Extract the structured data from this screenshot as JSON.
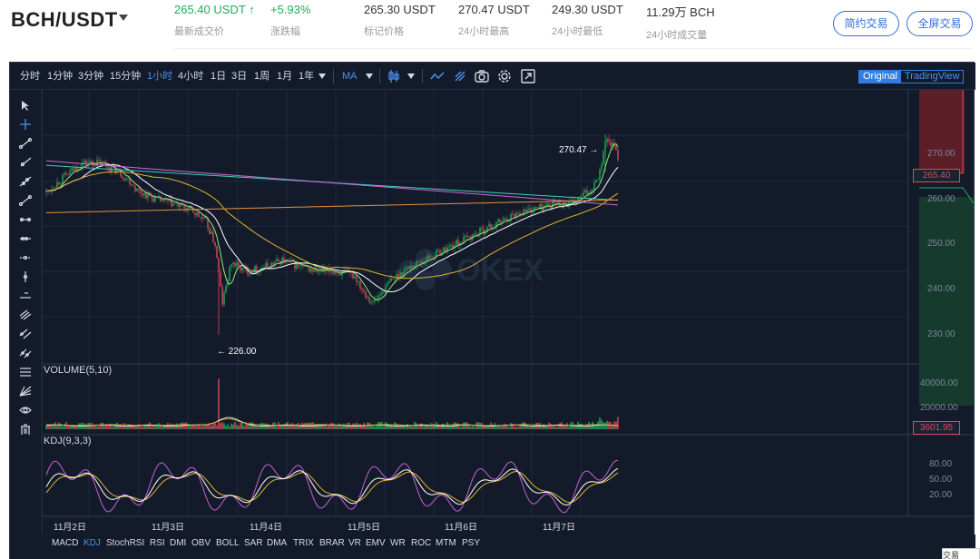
{
  "header": {
    "pair": "BCH/USDT",
    "stats": [
      {
        "value": "265.40 USDT ↑",
        "label": "最新成交价"
      },
      {
        "value": "+5.93%",
        "label": "涨跌幅"
      },
      {
        "value": "265.30 USDT",
        "label": "标记价格"
      },
      {
        "value": "270.47 USDT",
        "label": "24小时最高"
      },
      {
        "value": "249.30 USDT",
        "label": "24小时最低"
      },
      {
        "value": "11.29万 BCH",
        "label": "24小时成交量"
      }
    ],
    "buttons": {
      "simple": "简约交易",
      "fullscreen": "全屏交易"
    }
  },
  "toolbar": {
    "intervals": [
      "分时",
      "1分钟",
      "3分钟",
      "15分钟",
      "1小时",
      "4小时",
      "1日",
      "3日",
      "1周",
      "1月",
      "1年"
    ],
    "active_interval": "1小时",
    "indicator": "MA",
    "toggle": {
      "original": "Original",
      "tradingview": "TradingView"
    }
  },
  "chart": {
    "price_axis": [
      "270.00",
      "260.00",
      "250.00",
      "240.00",
      "230.00"
    ],
    "current_price": "265.40",
    "high_marker": "270.47 →",
    "low_marker": "← 226.00",
    "volume_label": "VOLUME(5,10)",
    "volume_axis": [
      "40000.00",
      "20000.00"
    ],
    "current_volume": "3601.95",
    "kdj_label": "KDJ(9,3,3)",
    "kdj_axis": [
      "80.00",
      "50.00",
      "20.00"
    ],
    "x_labels": [
      "11月2日",
      "11月3日",
      "11月4日",
      "11月5日",
      "11月6日",
      "11月7日"
    ],
    "watermark": "OKEX"
  },
  "indicators": [
    "MACD",
    "KDJ",
    "StochRSI",
    "RSI",
    "DMI",
    "OBV",
    "BOLL",
    "SAR",
    "DMA",
    "TRIX",
    "BRAR",
    "VR",
    "EMV",
    "WR",
    "ROC",
    "MTM",
    "PSY"
  ],
  "active_indicator": "KDJ",
  "corner_text": "交易"
}
